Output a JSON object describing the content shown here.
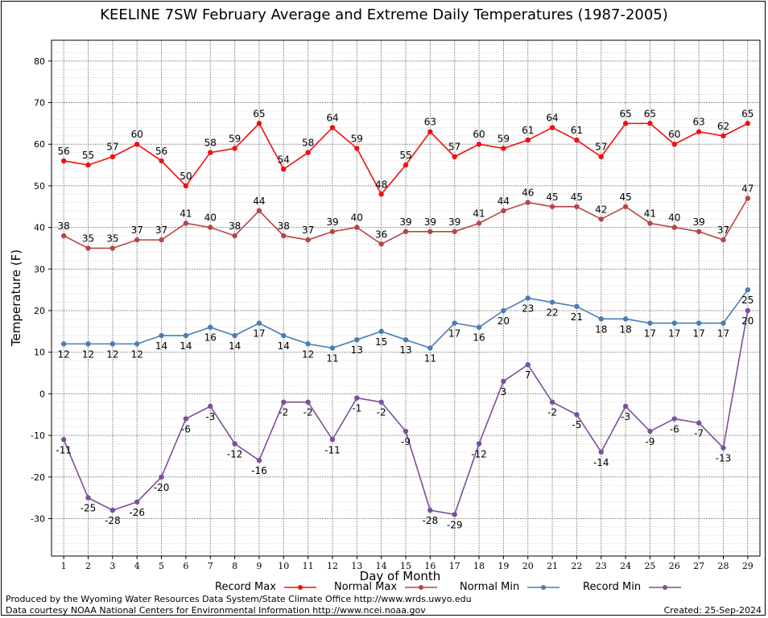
{
  "credits": {
    "produced_by": "Produced by the Wyoming Water Resources Data System/State Climate Office http://www.wrds.uwyo.edu",
    "data_courtesy": "Data courtesy NOAA National Centers for Environmental Information http://www.ncei.noaa.gov",
    "created": "Created:  25-Sep-2024"
  },
  "chart_data": {
    "type": "line",
    "title": "KEELINE 7SW February Average and Extreme Daily Temperatures (1987-2005)",
    "xlabel": "Day of Month",
    "ylabel": "Temperature (F)",
    "x": [
      1,
      2,
      3,
      4,
      5,
      6,
      7,
      8,
      9,
      10,
      11,
      12,
      13,
      14,
      15,
      16,
      17,
      18,
      19,
      20,
      21,
      22,
      23,
      24,
      25,
      26,
      27,
      28,
      29
    ],
    "xlim": [
      0.5,
      29.5
    ],
    "ylim": [
      -39,
      85
    ],
    "yticks": [
      -30,
      -20,
      -10,
      0,
      10,
      20,
      30,
      40,
      50,
      60,
      70,
      80
    ],
    "grid": true,
    "legend_position": "bottom",
    "series": [
      {
        "name": "Record Max",
        "color": "#ee1111",
        "label_pos": "above",
        "values": [
          56,
          55,
          57,
          60,
          56,
          50,
          58,
          59,
          65,
          54,
          58,
          64,
          59,
          48,
          55,
          63,
          57,
          60,
          59,
          61,
          64,
          61,
          57,
          65,
          65,
          60,
          63,
          62,
          65
        ]
      },
      {
        "name": "Normal Max",
        "color": "#b84545",
        "label_pos": "above",
        "values": [
          38,
          35,
          35,
          37,
          37,
          41,
          40,
          38,
          44,
          38,
          37,
          39,
          40,
          36,
          39,
          39,
          39,
          41,
          44,
          46,
          45,
          45,
          42,
          45,
          41,
          40,
          39,
          37,
          47
        ]
      },
      {
        "name": "Normal Min",
        "color": "#4a7db5",
        "label_pos": "below",
        "values": [
          12,
          12,
          12,
          12,
          14,
          14,
          16,
          14,
          17,
          14,
          12,
          11,
          13,
          15,
          13,
          11,
          17,
          16,
          20,
          23,
          22,
          21,
          18,
          18,
          17,
          17,
          17,
          17,
          25
        ]
      },
      {
        "name": "Record Min",
        "color": "#7b4f9a",
        "label_pos": "below",
        "values": [
          -11,
          -25,
          -28,
          -26,
          -20,
          -6,
          -3,
          -12,
          -16,
          -2,
          -2,
          -11,
          -1,
          -2,
          -9,
          -28,
          -29,
          -12,
          3,
          7,
          -2,
          -5,
          -14,
          -3,
          -9,
          -6,
          -7,
          -13,
          20
        ]
      }
    ]
  }
}
